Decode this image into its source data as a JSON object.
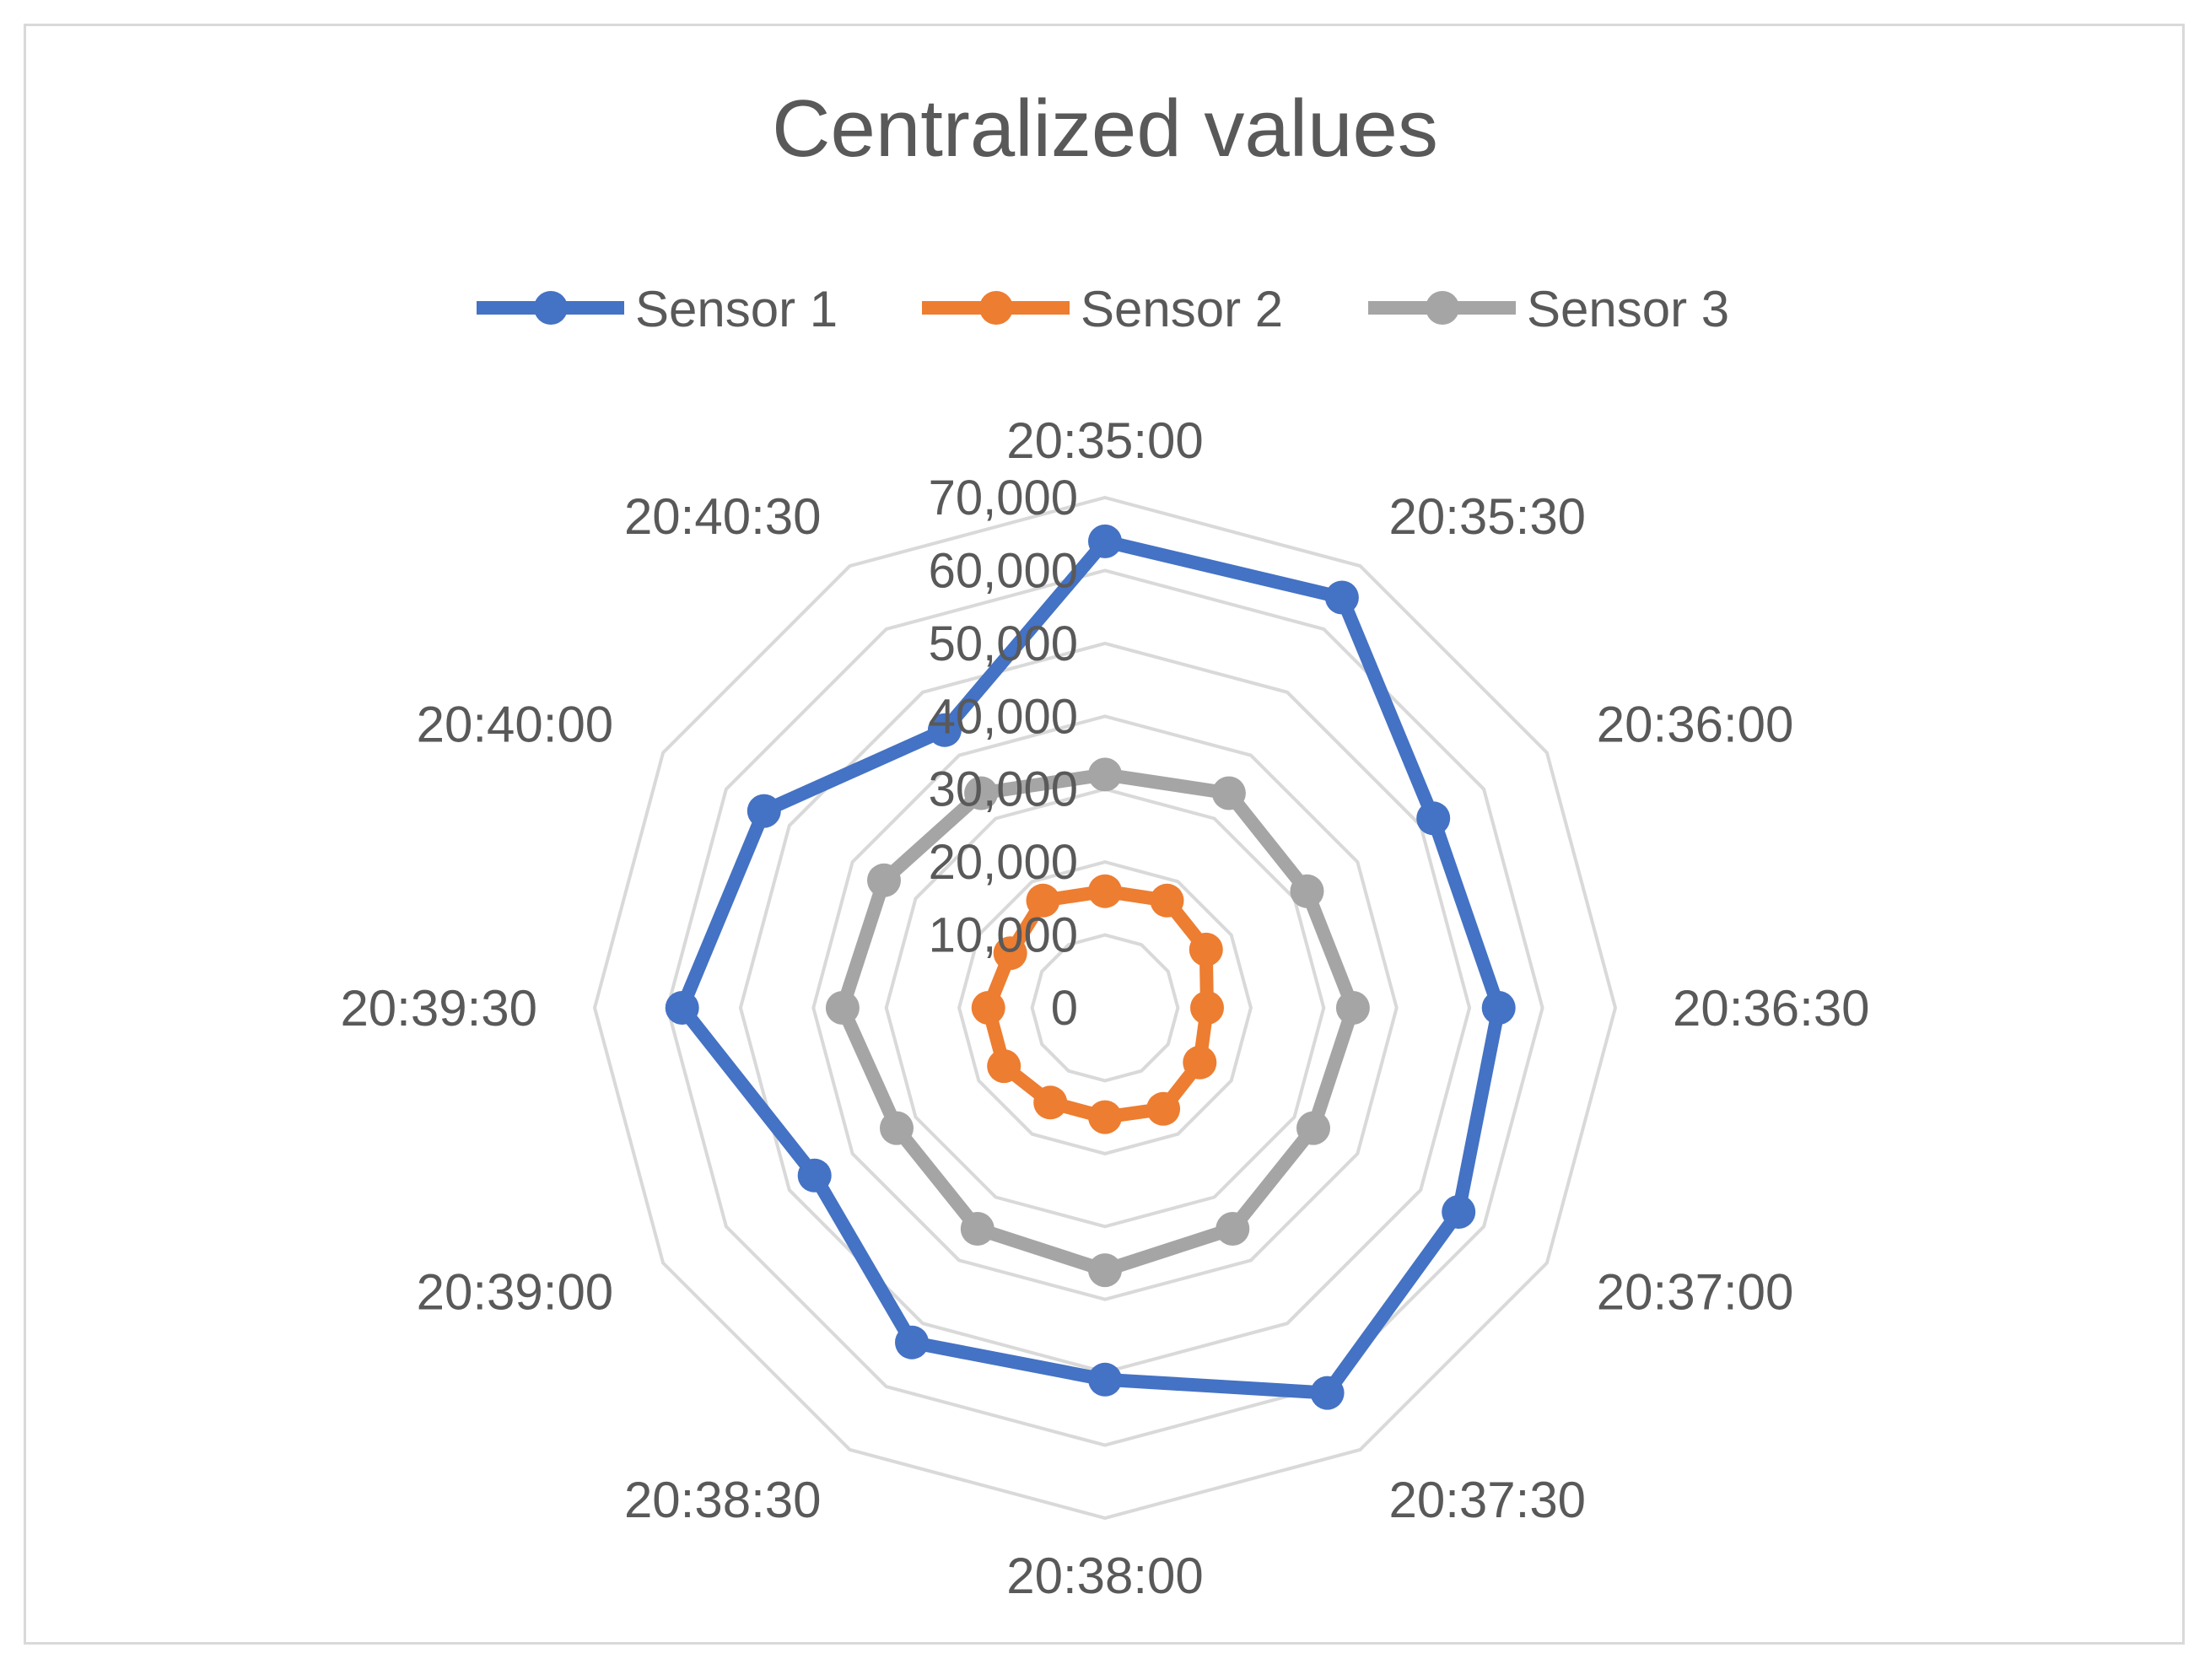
{
  "chart_data": {
    "type": "radar",
    "title": "Centralized values",
    "categories": [
      "20:35:00",
      "20:35:30",
      "20:36:00",
      "20:36:30",
      "20:37:00",
      "20:37:30",
      "20:38:00",
      "20:38:30",
      "20:39:00",
      "20:39:30",
      "20:40:00",
      "20:40:30"
    ],
    "radial_ticks": [
      "0",
      "10,000",
      "20,000",
      "30,000",
      "40,000",
      "50,000",
      "60,000",
      "70,000"
    ],
    "rlim": [
      0,
      70000
    ],
    "grid": true,
    "legend": "top",
    "series": [
      {
        "name": "Sensor 1",
        "color": "#4472c4",
        "values": [
          64000,
          65000,
          52000,
          54000,
          56000,
          61000,
          51000,
          53000,
          46000,
          58000,
          54000,
          44000
        ]
      },
      {
        "name": "Sensor 2",
        "color": "#ed7d31",
        "values": [
          16000,
          17000,
          16000,
          14000,
          15000,
          16000,
          15000,
          15000,
          16000,
          16000,
          15000,
          17000
        ]
      },
      {
        "name": "Sensor 3",
        "color": "#a5a5a5",
        "values": [
          32000,
          34000,
          32000,
          34000,
          33000,
          35000,
          36000,
          35000,
          33000,
          36000,
          35000,
          34000
        ]
      }
    ]
  }
}
